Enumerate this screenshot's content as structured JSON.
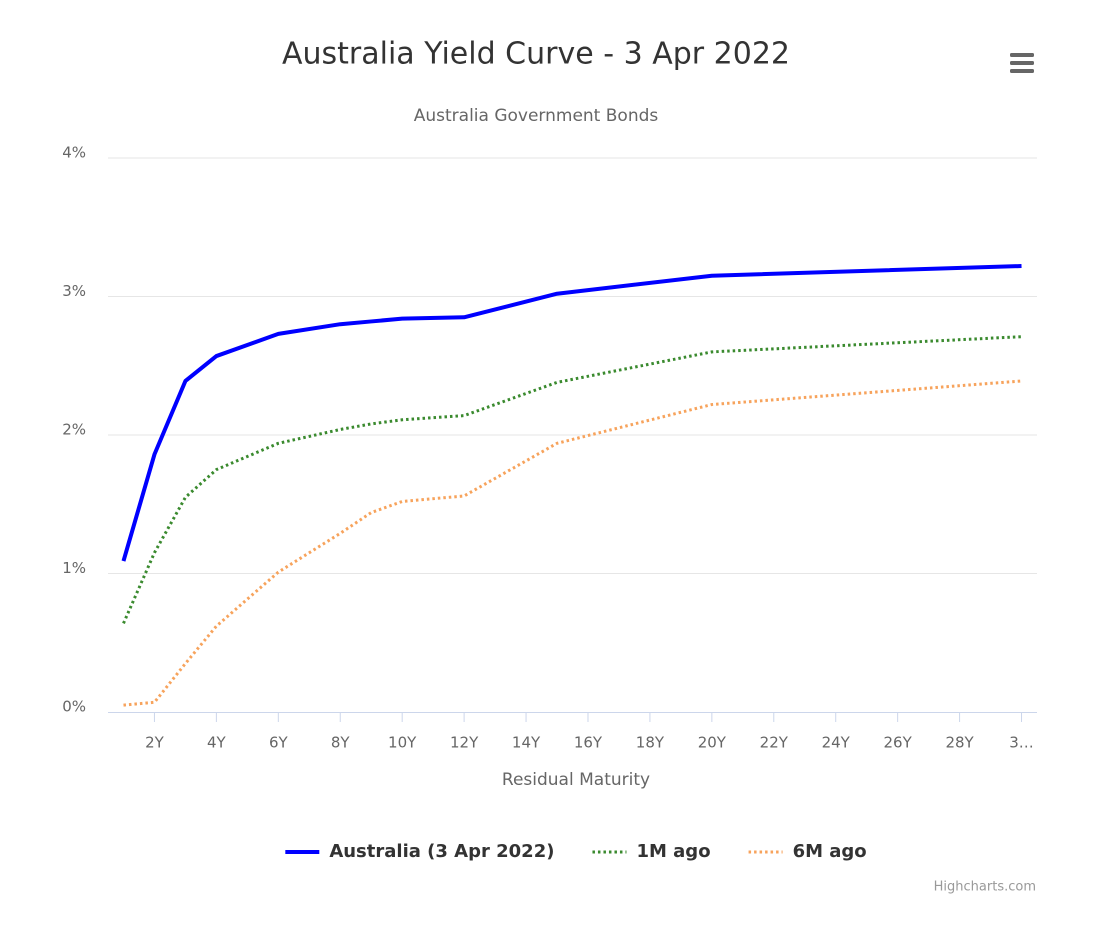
{
  "chart_data": {
    "type": "line",
    "title": "Australia Yield Curve - 3 Apr 2022",
    "subtitle": "Australia Government Bonds",
    "x_label": "Residual Maturity",
    "credits": "Highcharts.com",
    "x": [
      1,
      2,
      3,
      4,
      6,
      8,
      9,
      10,
      12,
      15,
      20,
      30
    ],
    "series": [
      {
        "name": "Australia (3 Apr 2022)",
        "color": "#0000ff",
        "dash": "solid",
        "values": [
          1.09,
          1.86,
          2.39,
          2.57,
          2.73,
          2.8,
          2.82,
          2.84,
          2.85,
          3.02,
          3.15,
          3.22
        ]
      },
      {
        "name": "1M ago",
        "color": "#3a8a2e",
        "dash": "dot",
        "values": [
          0.64,
          1.15,
          1.55,
          1.75,
          1.94,
          2.04,
          2.08,
          2.11,
          2.14,
          2.38,
          2.6,
          2.71
        ]
      },
      {
        "name": "6M ago",
        "color": "#f7a35c",
        "dash": "dot",
        "values": [
          0.05,
          0.07,
          0.35,
          0.62,
          1.01,
          1.29,
          1.44,
          1.52,
          1.56,
          1.94,
          2.22,
          2.39
        ]
      }
    ],
    "xlim": [
      0.5,
      30.5
    ],
    "xticks": [
      {
        "value": 2,
        "label": "2Y"
      },
      {
        "value": 4,
        "label": "4Y"
      },
      {
        "value": 6,
        "label": "6Y"
      },
      {
        "value": 8,
        "label": "8Y"
      },
      {
        "value": 10,
        "label": "10Y"
      },
      {
        "value": 12,
        "label": "12Y"
      },
      {
        "value": 14,
        "label": "14Y"
      },
      {
        "value": 16,
        "label": "16Y"
      },
      {
        "value": 18,
        "label": "18Y"
      },
      {
        "value": 20,
        "label": "20Y"
      },
      {
        "value": 22,
        "label": "22Y"
      },
      {
        "value": 24,
        "label": "24Y"
      },
      {
        "value": 26,
        "label": "26Y"
      },
      {
        "value": 28,
        "label": "28Y"
      },
      {
        "value": 30,
        "label": "3…"
      }
    ],
    "ylim": [
      0,
      4
    ],
    "yticks": [
      {
        "value": 0,
        "label": "0%"
      },
      {
        "value": 1,
        "label": "1%"
      },
      {
        "value": 2,
        "label": "2%"
      },
      {
        "value": 3,
        "label": "3%"
      },
      {
        "value": 4,
        "label": "4%"
      }
    ],
    "grid": true,
    "legend": "bottom"
  }
}
